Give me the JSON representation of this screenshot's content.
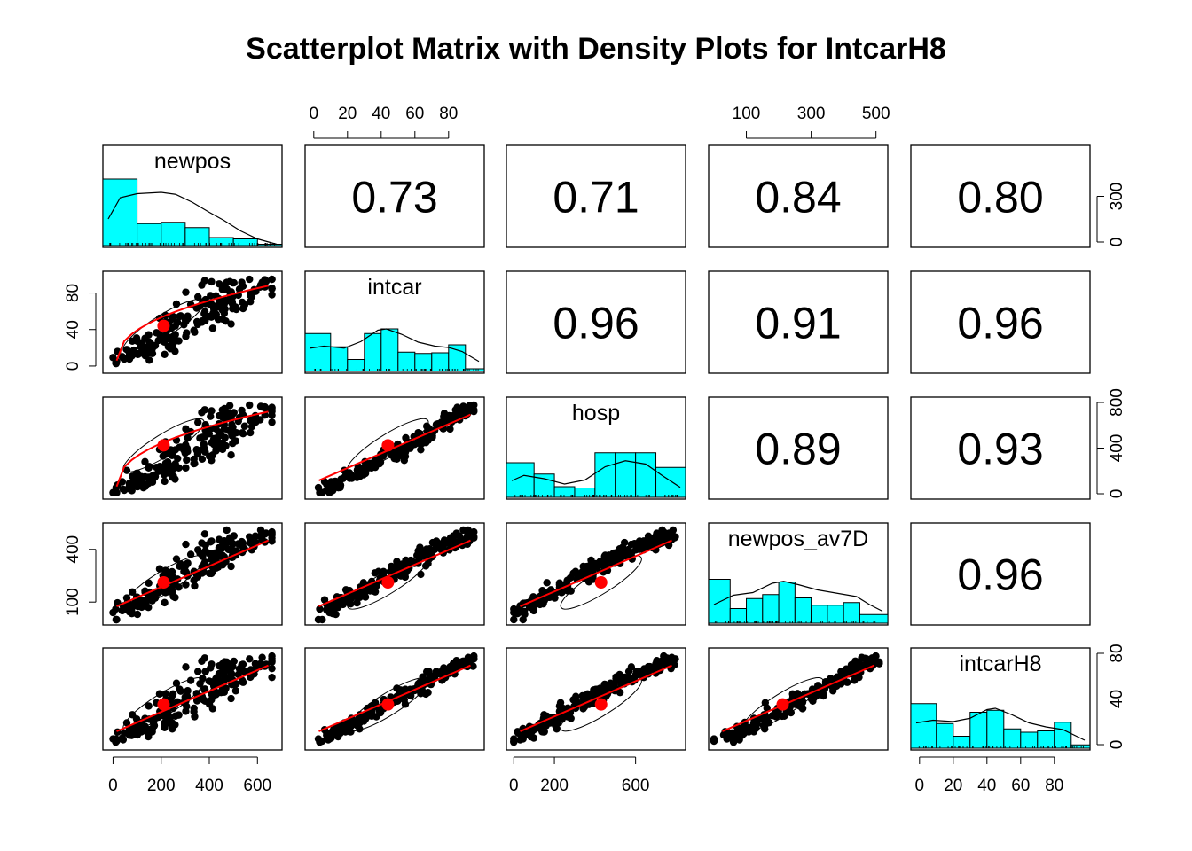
{
  "chart_data": {
    "type": "scatter",
    "title": "Scatterplot Matrix with Density Plots for IntcarH8",
    "variables": [
      "newpos",
      "intcar",
      "hosp",
      "newpos_av7D",
      "intcarH8"
    ],
    "variable_ranges": {
      "newpos": [
        -20,
        680
      ],
      "intcar": [
        -2,
        98
      ],
      "hosp": [
        -10,
        820
      ],
      "newpos_av7D": [
        0,
        520
      ],
      "intcarH8": [
        -2,
        98
      ]
    },
    "correlations": [
      {
        "row": "newpos",
        "col": "intcar",
        "label": "0.73"
      },
      {
        "row": "newpos",
        "col": "hosp",
        "label": "0.71"
      },
      {
        "row": "newpos",
        "col": "newpos_av7D",
        "label": "0.84"
      },
      {
        "row": "newpos",
        "col": "intcarH8",
        "label": "0.80"
      },
      {
        "row": "intcar",
        "col": "hosp",
        "label": "0.96"
      },
      {
        "row": "intcar",
        "col": "newpos_av7D",
        "label": "0.91"
      },
      {
        "row": "intcar",
        "col": "intcarH8",
        "label": "0.96"
      },
      {
        "row": "hosp",
        "col": "newpos_av7D",
        "label": "0.89"
      },
      {
        "row": "hosp",
        "col": "intcarH8",
        "label": "0.93"
      },
      {
        "row": "newpos_av7D",
        "col": "intcarH8",
        "label": "0.96"
      }
    ],
    "histograms": {
      "newpos": {
        "breaks": [
          -20,
          100,
          200,
          300,
          400,
          500,
          600,
          680
        ],
        "fractions": [
          1.0,
          0.33,
          0.35,
          0.27,
          0.12,
          0.1,
          0.02
        ]
      },
      "intcar": {
        "breaks": [
          -2,
          10,
          20,
          30,
          40,
          50,
          60,
          70,
          80,
          90,
          98
        ],
        "fractions": [
          0.57,
          0.37,
          0.18,
          0.57,
          0.64,
          0.29,
          0.27,
          0.28,
          0.4,
          0.04
        ]
      },
      "hosp": {
        "breaks": [
          -10,
          100,
          200,
          300,
          400,
          500,
          600,
          700,
          820
        ],
        "fractions": [
          0.52,
          0.35,
          0.16,
          0.14,
          0.67,
          0.67,
          0.67,
          0.45
        ]
      },
      "newpos_av7D": {
        "breaks": [
          0,
          50,
          100,
          150,
          200,
          250,
          300,
          350,
          400,
          450,
          520
        ],
        "fractions": [
          0.66,
          0.22,
          0.37,
          0.43,
          0.62,
          0.38,
          0.27,
          0.27,
          0.31,
          0.13
        ]
      },
      "intcarH8": {
        "breaks": [
          -2,
          10,
          20,
          30,
          40,
          50,
          60,
          70,
          80,
          90,
          98
        ],
        "fractions": [
          0.67,
          0.37,
          0.18,
          0.54,
          0.57,
          0.29,
          0.24,
          0.26,
          0.39,
          0.05
        ]
      }
    },
    "density_curves": {
      "newpos": [
        [
          -20,
          0.4
        ],
        [
          30,
          0.72
        ],
        [
          100,
          0.78
        ],
        [
          200,
          0.8
        ],
        [
          260,
          0.77
        ],
        [
          330,
          0.65
        ],
        [
          400,
          0.5
        ],
        [
          460,
          0.38
        ],
        [
          530,
          0.22
        ],
        [
          600,
          0.1
        ],
        [
          680,
          0.02
        ]
      ],
      "intcar": [
        [
          -2,
          0.35
        ],
        [
          6,
          0.38
        ],
        [
          18,
          0.35
        ],
        [
          28,
          0.45
        ],
        [
          38,
          0.62
        ],
        [
          43,
          0.64
        ],
        [
          52,
          0.56
        ],
        [
          62,
          0.44
        ],
        [
          72,
          0.38
        ],
        [
          80,
          0.36
        ],
        [
          88,
          0.3
        ],
        [
          98,
          0.15
        ]
      ],
      "hosp": [
        [
          -10,
          0.25
        ],
        [
          50,
          0.33
        ],
        [
          150,
          0.28
        ],
        [
          250,
          0.2
        ],
        [
          350,
          0.26
        ],
        [
          450,
          0.46
        ],
        [
          550,
          0.55
        ],
        [
          650,
          0.5
        ],
        [
          730,
          0.33
        ],
        [
          820,
          0.15
        ]
      ],
      "newpos_av7D": [
        [
          0,
          0.28
        ],
        [
          60,
          0.42
        ],
        [
          120,
          0.46
        ],
        [
          180,
          0.6
        ],
        [
          215,
          0.63
        ],
        [
          260,
          0.58
        ],
        [
          320,
          0.5
        ],
        [
          380,
          0.45
        ],
        [
          440,
          0.4
        ],
        [
          480,
          0.28
        ],
        [
          520,
          0.18
        ]
      ],
      "intcarH8": [
        [
          -2,
          0.38
        ],
        [
          8,
          0.42
        ],
        [
          20,
          0.4
        ],
        [
          30,
          0.45
        ],
        [
          40,
          0.58
        ],
        [
          45,
          0.6
        ],
        [
          55,
          0.5
        ],
        [
          65,
          0.38
        ],
        [
          75,
          0.32
        ],
        [
          85,
          0.28
        ],
        [
          98,
          0.12
        ]
      ]
    },
    "loess_mean": {
      "newpos": 210,
      "intcar": 44,
      "hosp": 430,
      "newpos_av7D": 212,
      "intcarH8": 42
    },
    "axes": {
      "top": [
        {
          "col": "intcar",
          "ticks": [
            0,
            20,
            40,
            60,
            80
          ]
        },
        {
          "col": "newpos_av7D",
          "ticks": [
            100,
            300,
            500
          ]
        }
      ],
      "bottom": [
        {
          "col": "newpos",
          "ticks": [
            0,
            200,
            400,
            600
          ]
        },
        {
          "col": "hosp",
          "ticks": [
            0,
            200,
            600
          ]
        },
        {
          "col": "intcarH8",
          "ticks": [
            0,
            20,
            40,
            60,
            80
          ]
        }
      ],
      "left": [
        {
          "row": "intcar",
          "ticks": [
            0,
            40,
            80
          ]
        },
        {
          "row": "newpos_av7D",
          "ticks": [
            100,
            400
          ]
        }
      ],
      "right": [
        {
          "row": "newpos",
          "ticks": [
            0,
            300
          ]
        },
        {
          "row": "hosp",
          "ticks": [
            0,
            400,
            800
          ]
        },
        {
          "row": "intcarH8",
          "ticks": [
            0,
            40,
            80
          ]
        }
      ]
    },
    "colors": {
      "histogram_fill": "#00ffff",
      "points": "#000000",
      "smooth_line": "#ff0000",
      "mean_point": "#ff0000"
    },
    "grid": false
  }
}
